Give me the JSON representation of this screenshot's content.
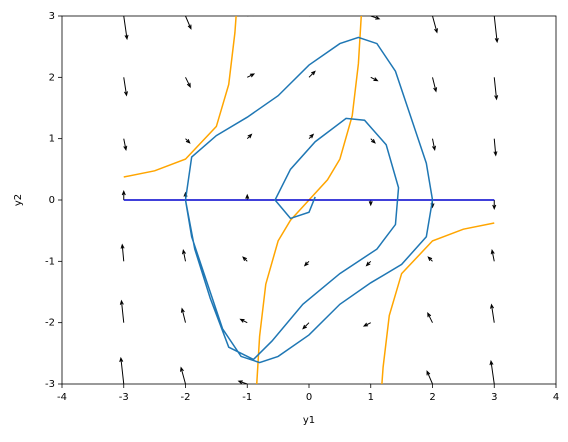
{
  "chart_data": {
    "type": "line",
    "xlabel": "y1",
    "ylabel": "y2",
    "xlim": [
      -4,
      4
    ],
    "ylim": [
      -3,
      3
    ],
    "xticks": [
      -4,
      -3,
      -2,
      -1,
      0,
      1,
      2,
      3,
      4
    ],
    "yticks": [
      -3,
      -2,
      -1,
      0,
      1,
      2,
      3
    ],
    "grid": false,
    "quiver": {
      "color": "#000000",
      "x": [
        -3,
        -2,
        -1,
        0,
        1,
        2,
        3
      ],
      "y": [
        -3,
        -2,
        -1,
        0,
        1,
        2,
        3
      ],
      "u": [
        [
          -3,
          -3,
          -3,
          -3,
          -3,
          -3,
          -3
        ],
        [
          -2,
          -2,
          -2,
          -2,
          -2,
          -2,
          -2
        ],
        [
          -1,
          -1,
          -1,
          -1,
          -1,
          -1,
          -1
        ],
        [
          0,
          0,
          0,
          0,
          0,
          0,
          0
        ],
        [
          1,
          1,
          1,
          1,
          1,
          1,
          1
        ],
        [
          2,
          2,
          2,
          2,
          2,
          2,
          2
        ],
        [
          3,
          3,
          3,
          3,
          3,
          3,
          3
        ]
      ],
      "v": [
        [
          27,
          11,
          1,
          -3,
          -1,
          7,
          21
        ],
        [
          19,
          8,
          1,
          -2,
          -1,
          4,
          13
        ],
        [
          11,
          5,
          1,
          -1,
          -1,
          1,
          5
        ],
        [
          3,
          2,
          1,
          0,
          -1,
          -2,
          -3
        ],
        [
          -5,
          -1,
          1,
          1,
          -1,
          -5,
          -11
        ],
        [
          -13,
          -4,
          1,
          2,
          -1,
          -8,
          -19
        ],
        [
          -21,
          -7,
          1,
          3,
          -1,
          -11,
          -27
        ]
      ]
    },
    "series": [
      {
        "color": "#ffa500",
        "x": [
          -3,
          -2.5,
          -2,
          -1.5,
          -1.3,
          -1.2,
          -1.18
        ],
        "values": [
          0.375,
          0.476,
          0.667,
          1.2,
          1.884,
          2.727,
          3.007
        ]
      },
      {
        "color": "#ffa500",
        "x": [
          -0.85,
          -0.8,
          -0.7,
          -0.5,
          -0.3,
          0,
          0.3,
          0.5,
          0.7,
          0.8,
          0.85
        ],
        "values": [
          -3.063,
          -2.222,
          -1.373,
          -0.667,
          -0.33,
          0,
          0.33,
          0.667,
          1.373,
          2.222,
          3.063
        ]
      },
      {
        "color": "#ffa500",
        "x": [
          1.18,
          1.2,
          1.3,
          1.5,
          2,
          2.5,
          3
        ],
        "values": [
          -3.007,
          -2.727,
          -1.884,
          -1.2,
          -0.667,
          -0.476,
          -0.375
        ]
      },
      {
        "color": "#0000cd",
        "x": [
          -3,
          3
        ],
        "values": [
          0,
          0
        ]
      },
      {
        "color": "#1f77b4",
        "x": [
          0.1,
          0,
          -0.3,
          -0.55,
          -0.3,
          0.1,
          0.6,
          0.9,
          1.25,
          1.45,
          1.4,
          1.1,
          0.5,
          -0.1,
          -0.6,
          -0.9,
          -1.3,
          -1.6,
          -1.85,
          -2,
          -1.9,
          -1.5,
          -1,
          -0.5,
          0,
          0.5,
          0.8,
          1.1,
          1.4,
          1.7,
          1.9,
          2,
          1.9,
          1.5,
          1,
          0.5,
          0,
          -0.5,
          -0.8,
          -1.1,
          -1.4,
          -1.7,
          -1.9,
          -2
        ],
        "values": [
          0.05,
          -0.2,
          -0.3,
          0,
          0.5,
          0.95,
          1.33,
          1.3,
          0.9,
          0.2,
          -0.4,
          -0.8,
          -1.2,
          -1.7,
          -2.3,
          -2.6,
          -2.4,
          -1.6,
          -0.8,
          0,
          0.7,
          1.05,
          1.35,
          1.7,
          2.2,
          2.55,
          2.65,
          2.55,
          2.1,
          1.2,
          0.6,
          0,
          -0.6,
          -1.05,
          -1.35,
          -1.7,
          -2.2,
          -2.55,
          -2.65,
          -2.55,
          -2.1,
          -1.2,
          -0.6,
          0
        ]
      }
    ]
  }
}
